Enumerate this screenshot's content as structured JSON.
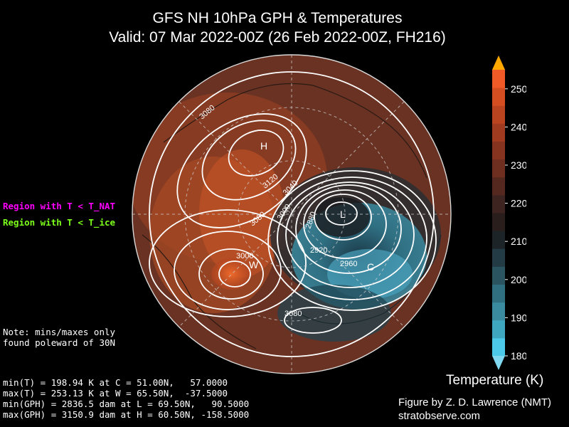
{
  "title": {
    "line1": "GFS NH 10hPa GPH & Temperatures",
    "line2": "Valid: 07 Mar 2022-00Z  (26 Feb 2022-00Z, FH216)"
  },
  "legend": {
    "nat": "Region with T < T_NAT",
    "ice": "Region with T < T_ice",
    "nat_color": "#ff00ff",
    "ice_color": "#7cff1a"
  },
  "note": [
    "Note: mins/maxes only",
    "found poleward of 30N"
  ],
  "stats": [
    "min(T) = 198.94 K at C = 51.00N,   57.0000",
    "max(T) = 253.13 K at W = 65.50N,  -37.5000",
    "min(GPH) = 2836.5 dam at L = 69.50N,   90.5000",
    "max(GPH) = 3150.9 dam at H = 60.50N, -158.5000"
  ],
  "credit": {
    "line1": "Figure by Z. D. Lawrence (NMT)",
    "line2": "stratobserve.com"
  },
  "colorbar": {
    "label": "Temperature (K)",
    "ticks": [
      180,
      190,
      200,
      210,
      220,
      230,
      240,
      250
    ],
    "range": [
      180,
      255
    ],
    "colors": [
      "#4cc8e8",
      "#3fa6c0",
      "#3a8aa0",
      "#2f6f80",
      "#2a5560",
      "#233b44",
      "#1c2428",
      "#2a1e1c",
      "#3e2420",
      "#55281f",
      "#6e2e20",
      "#86341f",
      "#a03b1f",
      "#bb4420",
      "#d54e22",
      "#ef5a26"
    ],
    "under_color": "#7fd8f0",
    "over_color": "#ffa800"
  },
  "map_labels": {
    "H": "H",
    "L": "L",
    "W": "W",
    "C": "C",
    "contours": [
      "3080",
      "3120",
      "3040",
      "3080",
      "3000",
      "2880",
      "2920",
      "2960",
      "3000",
      "3080"
    ]
  }
}
